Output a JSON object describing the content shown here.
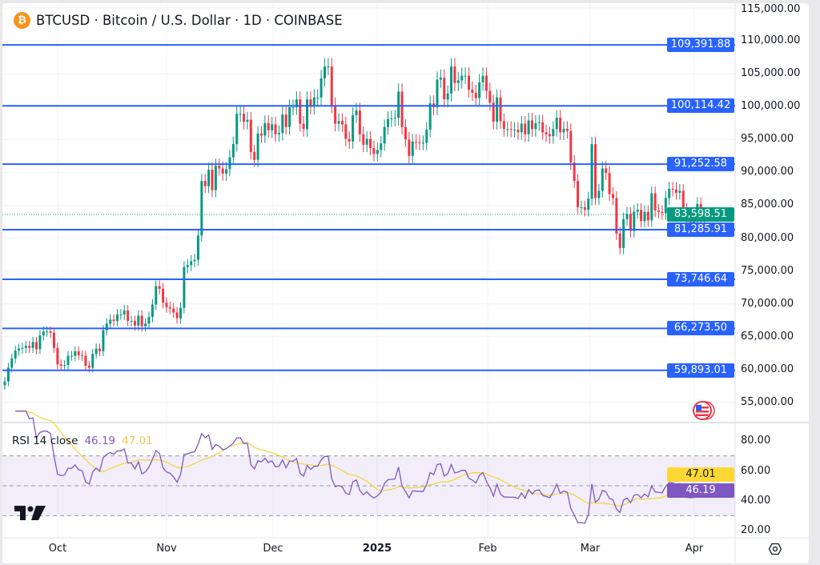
{
  "header": {
    "title": "BTCUSD · Bitcoin / U.S. Dollar · 1D · COINBASE",
    "symbol_icon": "bitcoin-icon"
  },
  "colors": {
    "up": "#089981",
    "down": "#f23645",
    "level_line": "#2962ff",
    "rsi": "#7e57c2",
    "rsi_ma": "#f7d441",
    "last_price": "#089981"
  },
  "price_axis": {
    "labels": [
      "115,000.00",
      "110,000.00",
      "105,000.00",
      "100,000.00",
      "95,000.00",
      "90,000.00",
      "85,000.00",
      "80,000.00",
      "75,000.00",
      "70,000.00",
      "65,000.00",
      "60,000.00",
      "55,000.00"
    ]
  },
  "levels": [
    {
      "value": 109391.88,
      "label": "109,391.88"
    },
    {
      "value": 100114.42,
      "label": "100,114.42"
    },
    {
      "value": 91252.58,
      "label": "91,252.58"
    },
    {
      "value": 81285.91,
      "label": "81,285.91"
    },
    {
      "value": 73746.64,
      "label": "73,746.64"
    },
    {
      "value": 66273.5,
      "label": "66,273.50"
    },
    {
      "value": 59893.01,
      "label": "59,893.01"
    }
  ],
  "last_price": {
    "value": 83598.51,
    "label": "83,598.51"
  },
  "rsi": {
    "legend": "RSI 14 close",
    "value": "46.19",
    "ma_value": "47.01",
    "axis_labels": [
      "80.00",
      "60.00",
      "40.00",
      "20.00"
    ],
    "upper_band": 70,
    "middle": 50,
    "lower_band": 30
  },
  "time_axis": {
    "labels": [
      "Oct",
      "Nov",
      "Dec",
      "2025",
      "Feb",
      "Mar",
      "Apr"
    ]
  },
  "chart_data": {
    "type": "candlestick",
    "interval": "1D",
    "start_date": "2024-09-16",
    "end_date": "2025-04-03",
    "ylim": [
      55000,
      115000
    ],
    "grid": true,
    "close": [
      58200,
      60300,
      61700,
      62900,
      63200,
      63300,
      63600,
      63300,
      64200,
      63100,
      65200,
      65800,
      65800,
      65600,
      63300,
      60800,
      60600,
      60700,
      62100,
      62100,
      62800,
      62200,
      62100,
      60600,
      60300,
      62400,
      63200,
      62800,
      66000,
      67000,
      67600,
      67400,
      68400,
      68400,
      69000,
      67400,
      67400,
      66700,
      68200,
      66600,
      67000,
      68000,
      69900,
      72700,
      72300,
      70200,
      69500,
      69300,
      68700,
      67800,
      69400,
      75600,
      75900,
      76500,
      76700,
      80400,
      88700,
      87900,
      90400,
      87300,
      91000,
      90600,
      89800,
      90500,
      92300,
      94300,
      98900,
      98900,
      97700,
      98000,
      93100,
      91900,
      95900,
      95600,
      97500,
      96400,
      97300,
      95800,
      96000,
      98800,
      96900,
      99900,
      99900,
      101100,
      97400,
      96600,
      101100,
      100000,
      101400,
      101400,
      104300,
      106100,
      106100,
      100200,
      97400,
      97800,
      97300,
      95100,
      94700,
      98700,
      99400,
      95800,
      94200,
      95100,
      93700,
      92800,
      93400,
      94400,
      96900,
      98100,
      98200,
      98300,
      102300,
      96900,
      95000,
      92500,
      94700,
      94600,
      94500,
      94500,
      96500,
      100500,
      99900,
      104100,
      104400,
      101100,
      102000,
      106100,
      103600,
      104000,
      104700,
      104700,
      102600,
      102100,
      101300,
      103700,
      104700,
      102400,
      100600,
      97700,
      101400,
      97800,
      96600,
      96600,
      96500,
      96500,
      96100,
      97400,
      95800,
      97900,
      96600,
      97500,
      97600,
      96100,
      95800,
      95500,
      96600,
      98300,
      96100,
      96600,
      96300,
      91500,
      88700,
      84700,
      84700,
      84300,
      86000,
      94300,
      86100,
      87200,
      90600,
      89900,
      86700,
      86100,
      80700,
      78500,
      82900,
      83700,
      81100,
      84000,
      84300,
      82600,
      84000,
      82700,
      86800,
      84200,
      84000,
      83800,
      86100,
      87500,
      87400,
      86900,
      87200,
      84300,
      82600,
      82400,
      82500,
      85200,
      82500,
      83598.51
    ]
  }
}
